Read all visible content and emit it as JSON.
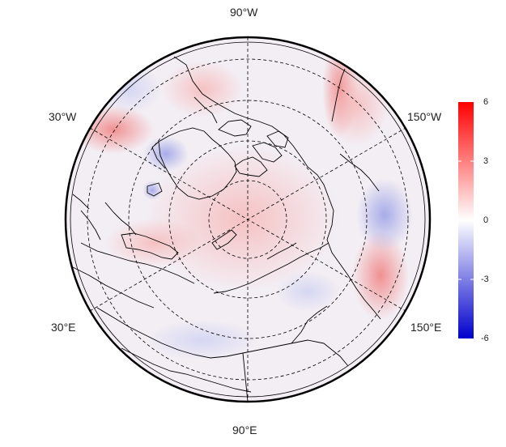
{
  "map": {
    "projection": "north-polar-stereographic",
    "longitude_labels": {
      "top": "90°W",
      "upper_left": "30°W",
      "upper_right": "150°W",
      "lower_left": "30°E",
      "lower_right": "150°E",
      "bottom": "90°E"
    },
    "grid": "on",
    "grid_style": "dashed",
    "coastlines": "on",
    "country_borders": "on"
  },
  "colorbar": {
    "position": "right",
    "min": -6,
    "max": 6,
    "ticks": [
      "6",
      "3",
      "0",
      "-3",
      "-6"
    ],
    "colors": {
      "high": "#ff0000",
      "mid": "#ffffff",
      "low": "#0000cc"
    }
  }
}
